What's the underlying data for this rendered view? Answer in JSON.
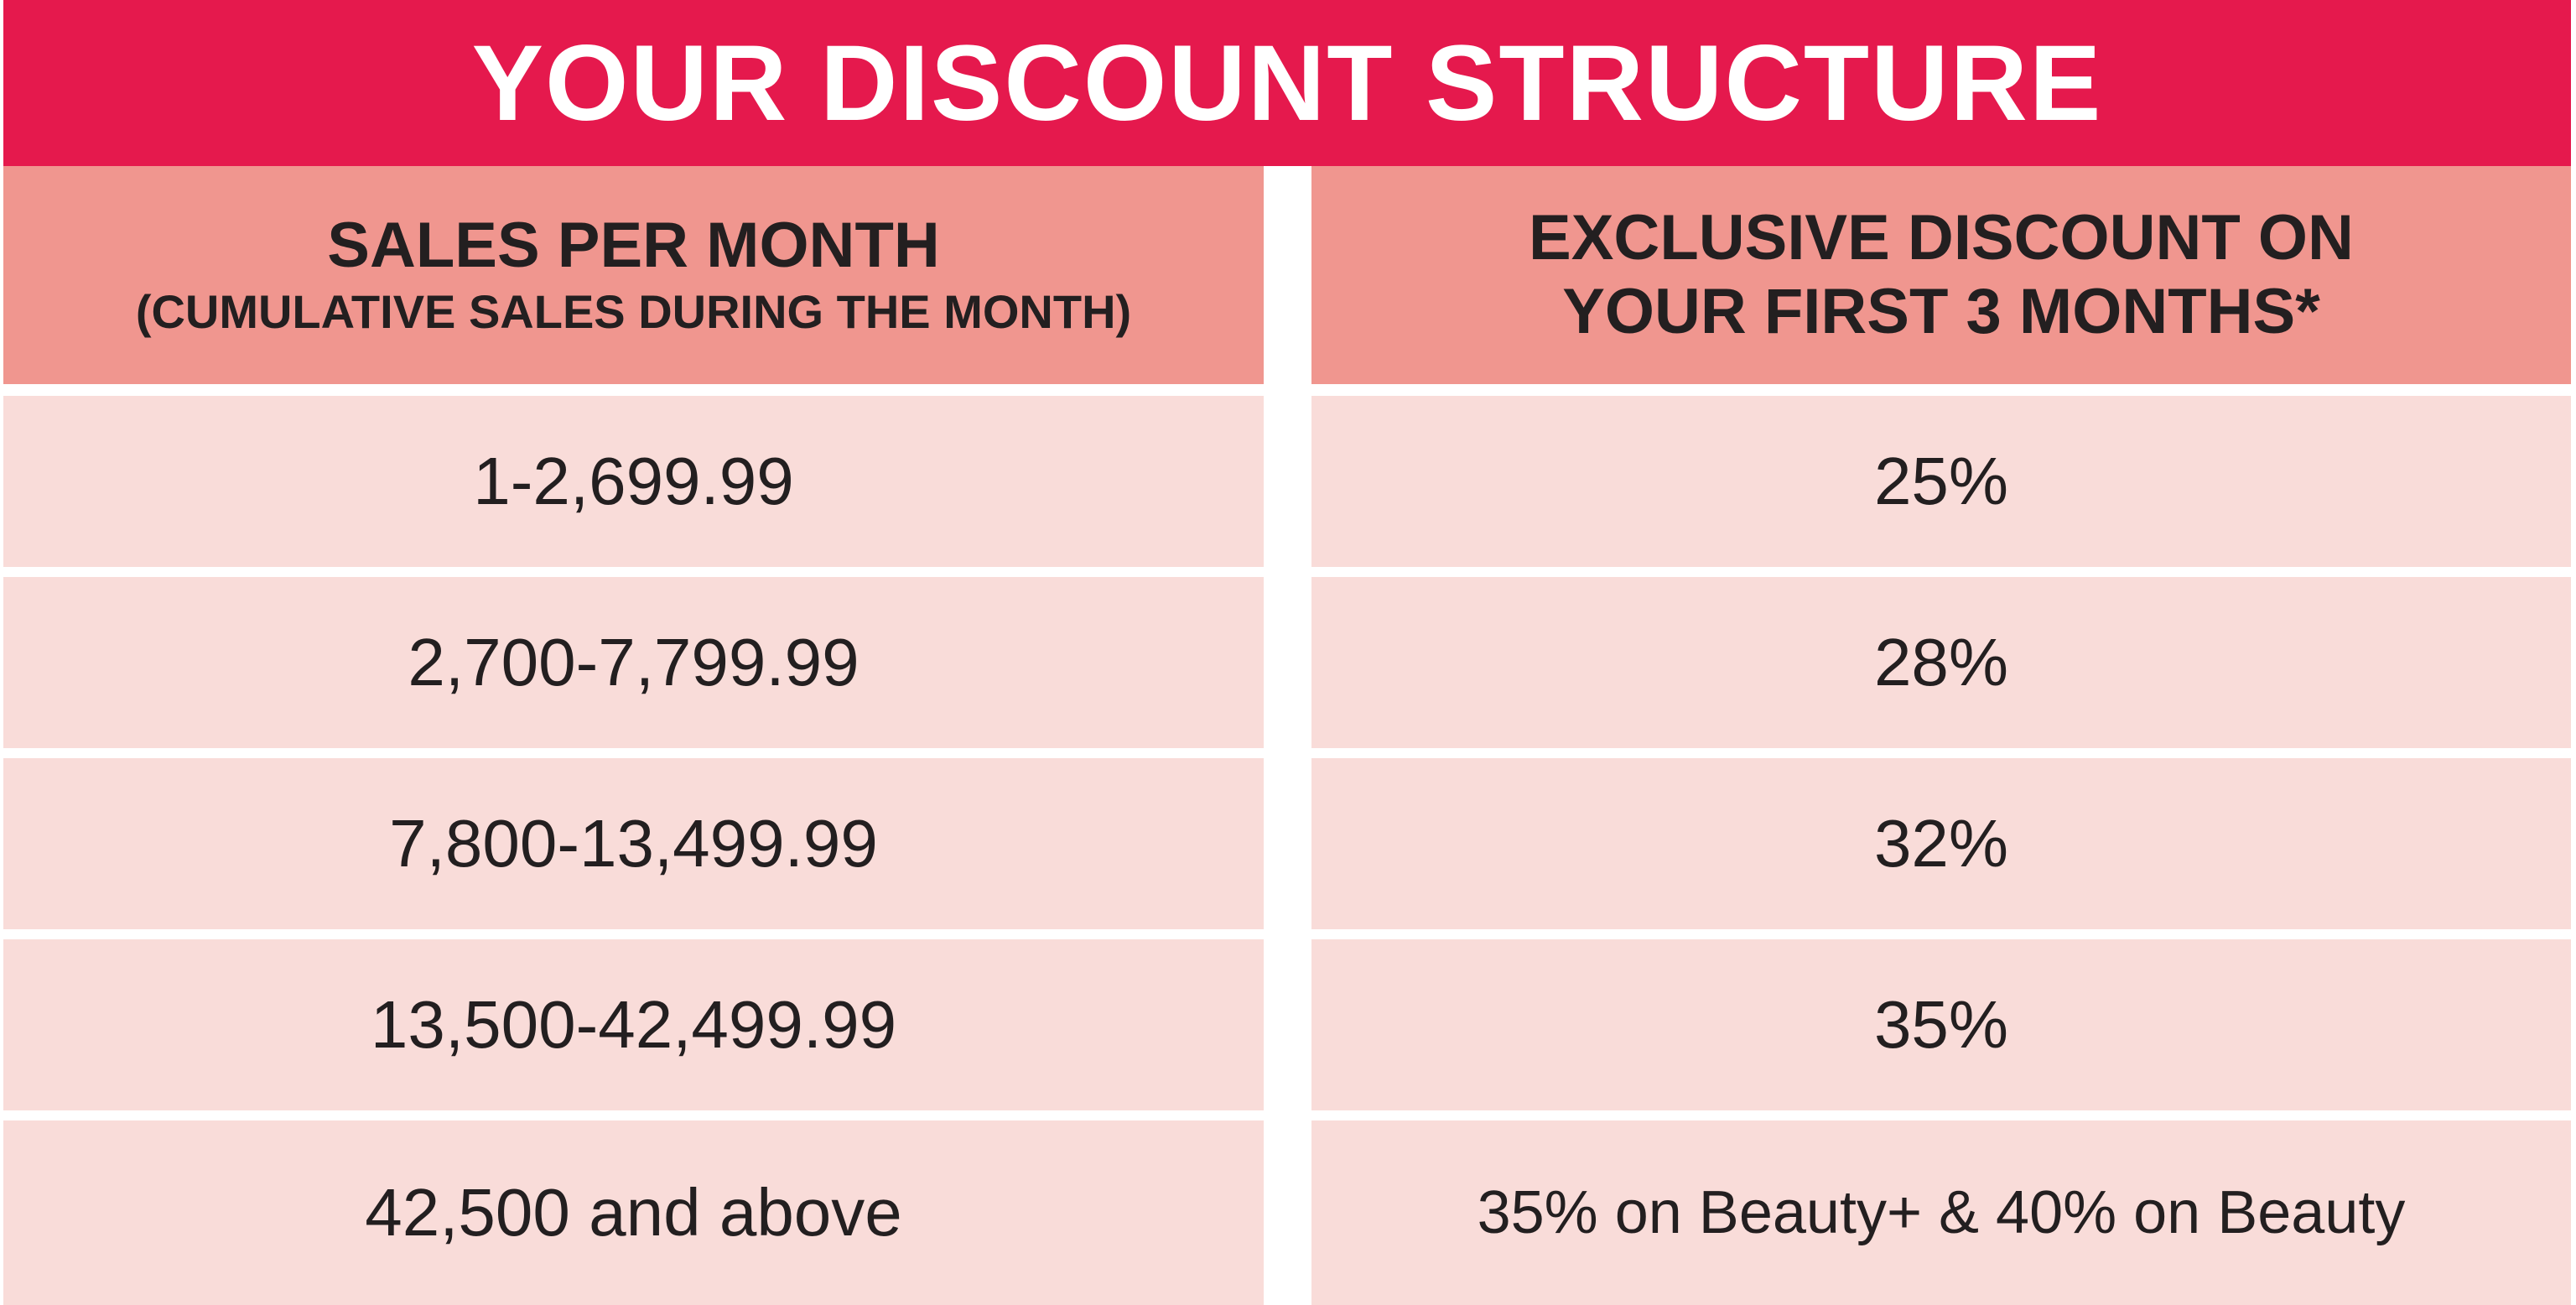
{
  "title": "YOUR DISCOUNT STRUCTURE",
  "headers": {
    "sales": {
      "line1": "SALES PER MONTH",
      "line2": "(CUMULATIVE SALES DURING THE MONTH)"
    },
    "discount": {
      "line1": "EXCLUSIVE  DISCOUNT ON",
      "line2": "YOUR FIRST 3 MONTHS*"
    }
  },
  "rows": [
    {
      "sales": "1-2,699.99",
      "discount": "25%"
    },
    {
      "sales": "2,700-7,799.99",
      "discount": "28%"
    },
    {
      "sales": "7,800-13,499.99",
      "discount": "32%"
    },
    {
      "sales": "13,500-42,499.99",
      "discount": "35%"
    },
    {
      "sales": "42,500 and above",
      "discount": "35% on Beauty+ & 40% on Beauty"
    }
  ],
  "colors": {
    "banner": "#e5194d",
    "header": "#f0968f",
    "row": "#f9dcd9"
  }
}
